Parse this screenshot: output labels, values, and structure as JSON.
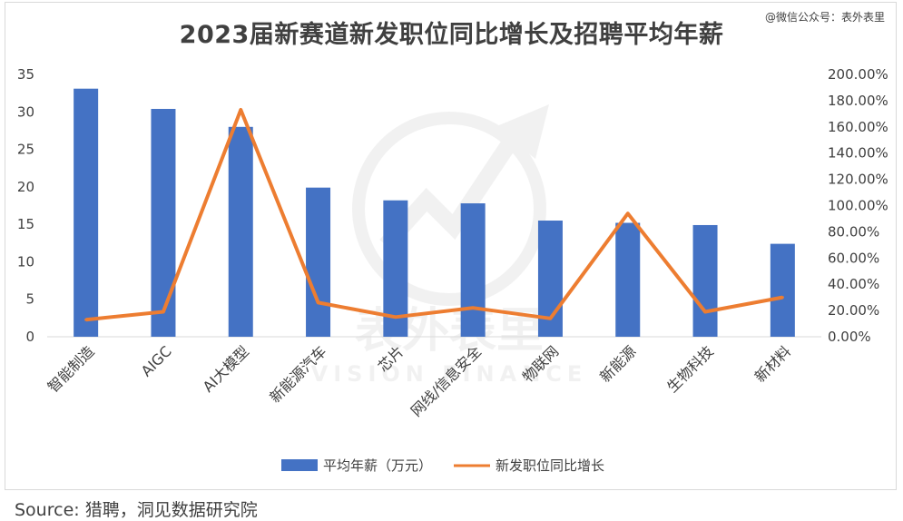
{
  "header": {
    "title": "2023届新赛道新发职位同比增长及招聘平均年薪",
    "watermark_tag": "@微信公众号：表外表里"
  },
  "footer": {
    "source": "Source: 猎聘，洞见数据研究院"
  },
  "watermark": {
    "cn_text": "表外表里",
    "en_text": "VISION FINANCE"
  },
  "colors": {
    "bar": "#4472c4",
    "line": "#ed7d31",
    "text": "#404040",
    "frame": "#d9d9d9"
  },
  "chart_data": {
    "type": "bar",
    "title": "2023届新赛道新发职位同比增长及招聘平均年薪",
    "categories": [
      "智能制造",
      "AIGC",
      "AI大模型",
      "新能源汽车",
      "芯片",
      "网线/信息安全",
      "物联网",
      "新能源",
      "生物科技",
      "新材料"
    ],
    "series": [
      {
        "name": "平均年薪（万元）",
        "kind": "bar",
        "axis": "left",
        "values": [
          33.1,
          30.4,
          28.0,
          19.9,
          18.2,
          17.8,
          15.5,
          15.2,
          14.9,
          12.4
        ]
      },
      {
        "name": "新发职位同比增长",
        "kind": "line",
        "axis": "right",
        "values": [
          0.13,
          0.19,
          1.73,
          0.26,
          0.15,
          0.22,
          0.14,
          0.94,
          0.19,
          0.3
        ]
      }
    ],
    "y_left": {
      "min": 0,
      "max": 35,
      "ticks": [
        "0",
        "5",
        "10",
        "15",
        "20",
        "25",
        "30",
        "35"
      ]
    },
    "y_right": {
      "min": 0,
      "max": 2,
      "ticks": [
        "0.00%",
        "20.00%",
        "40.00%",
        "60.00%",
        "80.00%",
        "100.00%",
        "120.00%",
        "140.00%",
        "160.00%",
        "180.00%",
        "200.00%"
      ]
    },
    "grid": false,
    "legend_position": "bottom"
  }
}
